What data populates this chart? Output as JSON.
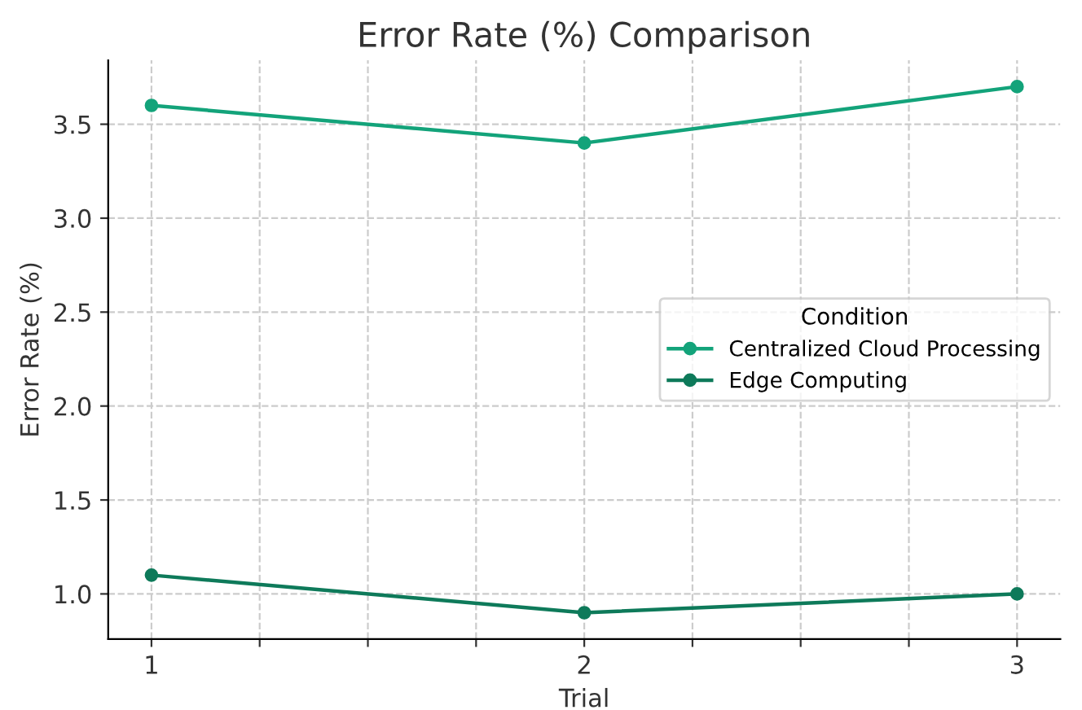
{
  "chart_data": {
    "type": "line",
    "title": "Error Rate (%) Comparison",
    "xlabel": "Trial",
    "ylabel": "Error Rate (%)",
    "legend_title": "Condition",
    "x": [
      1,
      2,
      3
    ],
    "series": [
      {
        "name": "Centralized Cloud Processing",
        "color": "#13a37a",
        "values": [
          3.6,
          3.4,
          3.7
        ]
      },
      {
        "name": "Edge Computing",
        "color": "#0e7a5a",
        "values": [
          1.1,
          0.9,
          1.0
        ]
      }
    ],
    "xlim": [
      0.9,
      3.1
    ],
    "ylim": [
      0.76,
      3.84
    ],
    "xticks": [
      1,
      {
        "value": 1.25,
        "label": null
      },
      {
        "value": 1.5,
        "label": null
      },
      {
        "value": 1.75,
        "label": null
      },
      2,
      {
        "value": 2.25,
        "label": null
      },
      {
        "value": 2.5,
        "label": null
      },
      {
        "value": 2.75,
        "label": null
      },
      3
    ],
    "yticks": [
      {
        "value": 1,
        "label": "1.0"
      },
      1.5,
      {
        "value": 2,
        "label": "2.0"
      },
      2.5,
      {
        "value": 3,
        "label": "3.0"
      },
      3.5
    ],
    "grid": true,
    "legend": "center right",
    "marker": "circle",
    "line_style": "solid"
  }
}
